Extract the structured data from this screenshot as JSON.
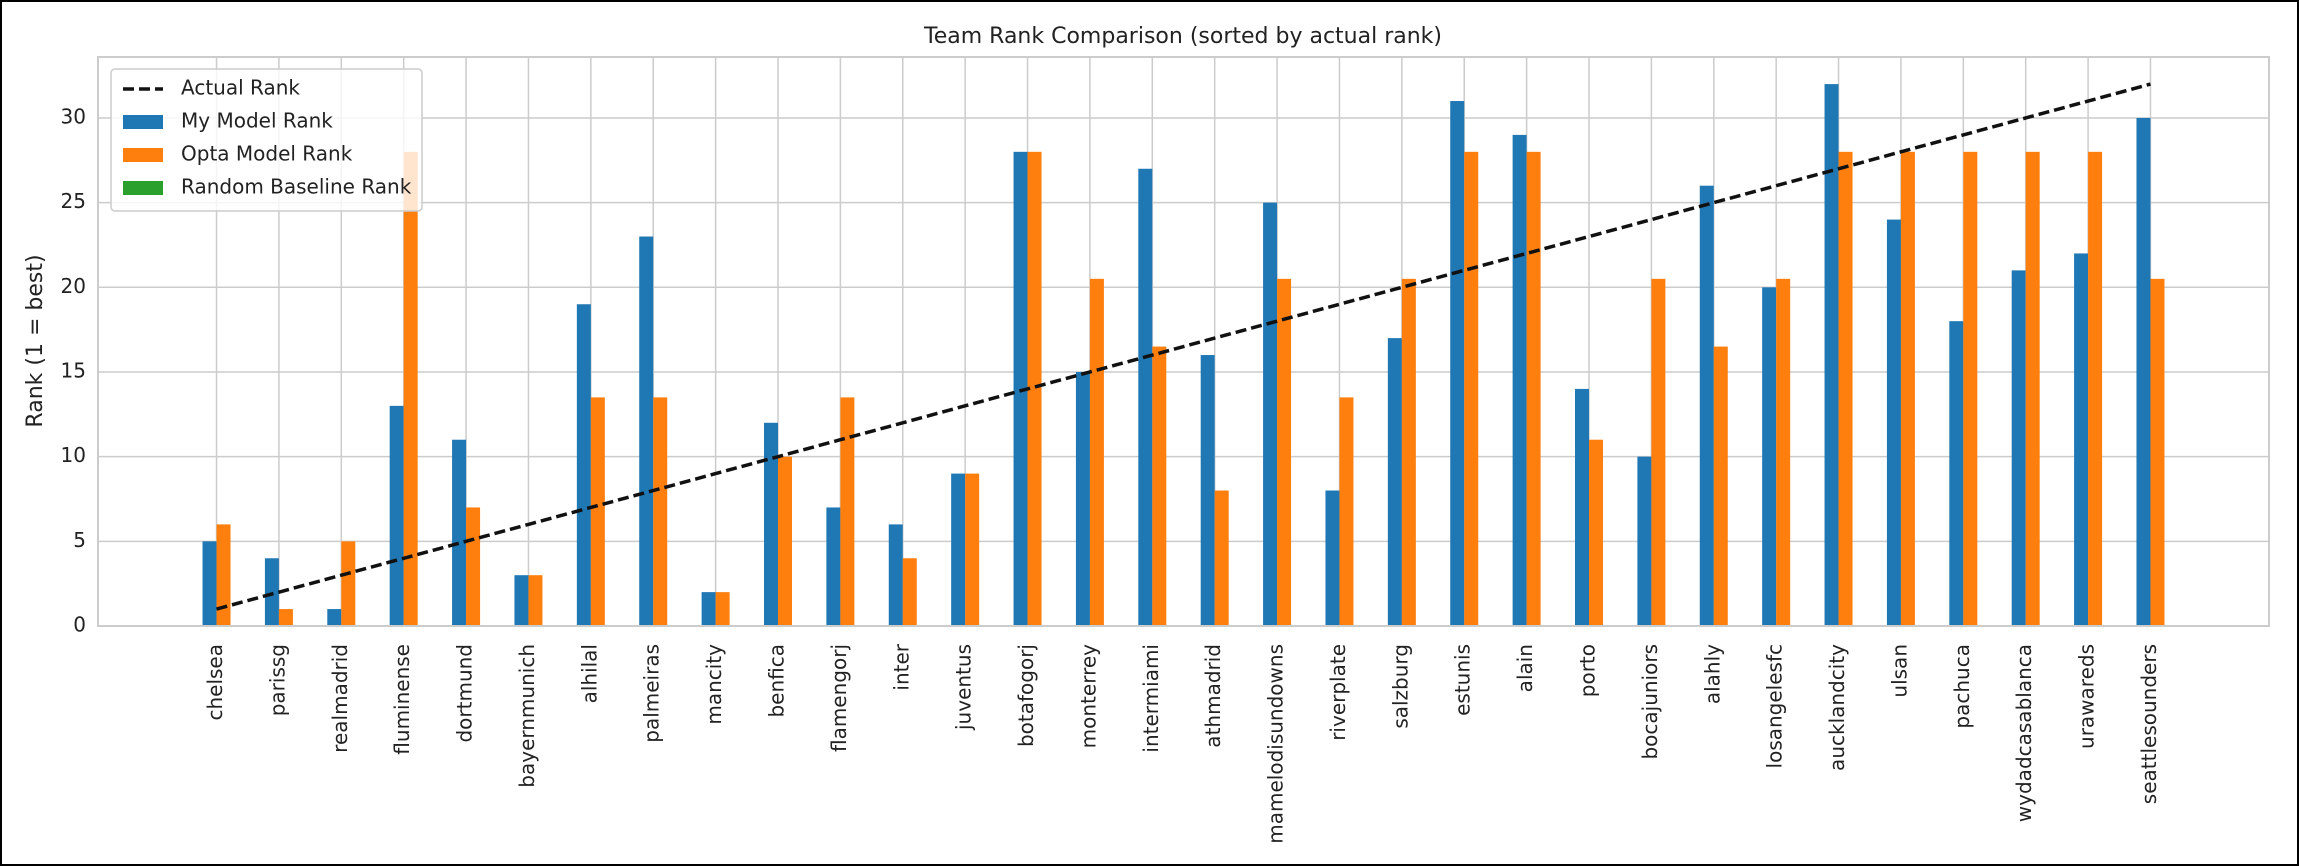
{
  "chart_data": {
    "type": "bar",
    "title": "Team Rank Comparison (sorted by actual rank)",
    "y_label": "Rank (1 = best)",
    "categories": [
      "chelsea",
      "parissg",
      "realmadrid",
      "fluminense",
      "dortmund",
      "bayernmunich",
      "alhilal",
      "palmeiras",
      "mancity",
      "benfica",
      "flamengorj",
      "inter",
      "juventus",
      "botafogorj",
      "monterrey",
      "intermiami",
      "athmadrid",
      "mamelodisundowns",
      "riverplate",
      "salzburg",
      "estunis",
      "alain",
      "porto",
      "bocajuniors",
      "alahly",
      "losangelesfc",
      "aucklandcity",
      "ulsan",
      "pachuca",
      "wydadcasablanca",
      "urawareds",
      "seattlesounders"
    ],
    "series": [
      {
        "name": "Actual Rank",
        "type": "line",
        "color": "#111111",
        "dashed": true,
        "values": [
          1,
          2,
          3,
          4,
          5,
          6,
          7,
          8,
          9,
          10,
          11,
          12,
          13,
          14,
          15,
          16,
          17,
          18,
          19,
          20,
          21,
          22,
          23,
          24,
          25,
          26,
          27,
          28,
          29,
          30,
          31,
          32
        ]
      },
      {
        "name": "My Model Rank",
        "type": "bar",
        "color": "#1f77b4",
        "values": [
          5,
          4,
          1,
          13,
          11,
          3,
          19,
          23,
          2,
          12,
          7,
          6,
          9,
          28,
          15,
          27,
          16,
          25,
          8,
          17,
          31,
          29,
          14,
          10,
          26,
          20,
          32,
          24,
          18,
          21,
          22,
          30
        ]
      },
      {
        "name": "Opta Model Rank",
        "type": "bar",
        "color": "#ff7f0e",
        "values": [
          6,
          1,
          5,
          28,
          7,
          3,
          13.5,
          13.5,
          2,
          10,
          13.5,
          4,
          9,
          28,
          20.5,
          16.5,
          8,
          20.5,
          13.5,
          20.5,
          28,
          28,
          11,
          20.5,
          16.5,
          20.5,
          28,
          28,
          28,
          28,
          28,
          20.5
        ]
      },
      {
        "name": "Random Baseline Rank",
        "type": "bar",
        "color": "#2ca02c",
        "values": [
          null,
          null,
          null,
          null,
          null,
          null,
          null,
          null,
          null,
          null,
          null,
          null,
          null,
          null,
          null,
          null,
          null,
          null,
          null,
          null,
          null,
          null,
          null,
          null,
          null,
          null,
          null,
          null,
          null,
          null,
          null,
          null
        ]
      }
    ],
    "ylim": [
      0,
      33.6
    ],
    "yticks": [
      0,
      5,
      10,
      15,
      20,
      25,
      30
    ],
    "grid": true,
    "legend": "upper left"
  }
}
